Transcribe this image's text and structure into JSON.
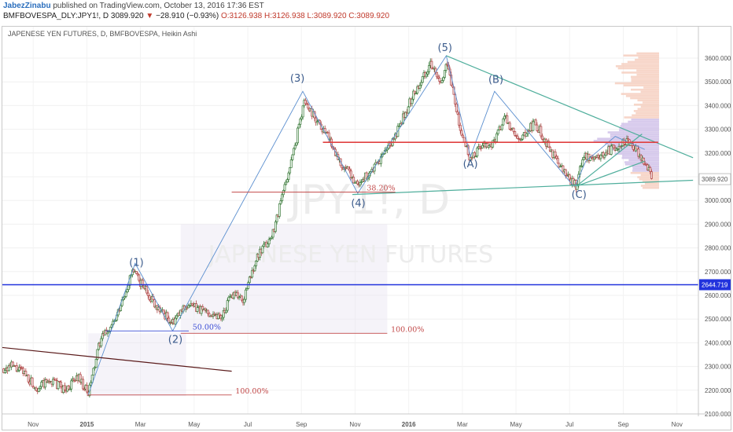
{
  "header": {
    "author": "JabezZinabu",
    "published": " published on TradingView.com, October 13, 2016 17:36 EST",
    "symbol": "BMFBOVESPA_DLY:JPY1!, D",
    "last": "3089.920",
    "arrow": "▼",
    "change": "−28.910 (−0.93%)",
    "ohlc": "O:3126.938 H:3126.938 L:3089.920 C:3089.920"
  },
  "chart_data": {
    "type": "candlestick",
    "title": "JAPENESE YEN FUTURES, D, BMFBOVESPA, Heikin Ashi",
    "watermark_symbol": "JPY1!, D",
    "watermark_name": "JAPENESE YEN FUTURES",
    "y_ticks": [
      "2100.000",
      "2200.000",
      "2300.000",
      "2400.000",
      "2500.000",
      "2600.000",
      "2700.000",
      "2800.000",
      "2900.000",
      "3000.000",
      "3100.000",
      "3200.000",
      "3300.000",
      "3400.000",
      "3500.000",
      "3600.000"
    ],
    "ylim": [
      2070,
      3660
    ],
    "x_labels": [
      {
        "t": 0.5,
        "label": "Nov"
      },
      {
        "t": 2.5,
        "label": "2015"
      },
      {
        "t": 4.5,
        "label": "Mar"
      },
      {
        "t": 6.5,
        "label": "May"
      },
      {
        "t": 8.5,
        "label": "Jul"
      },
      {
        "t": 10.5,
        "label": "Sep"
      },
      {
        "t": 12.5,
        "label": "Nov"
      },
      {
        "t": 14.5,
        "label": "2016"
      },
      {
        "t": 16.5,
        "label": "Mar"
      },
      {
        "t": 18.5,
        "label": "May"
      },
      {
        "t": 20.5,
        "label": "Jul"
      },
      {
        "t": 22.5,
        "label": "Sep"
      },
      {
        "t": 24.5,
        "label": "Nov"
      }
    ],
    "xlim": [
      -0.65,
      25.3
    ],
    "last_t": 23.6,
    "price_path": [
      [
        -0.65,
        2290
      ],
      [
        -0.3,
        2300
      ],
      [
        0.2,
        2270
      ],
      [
        0.6,
        2210
      ],
      [
        1.2,
        2240
      ],
      [
        1.7,
        2200
      ],
      [
        2.2,
        2260
      ],
      [
        2.55,
        2180
      ],
      [
        3.0,
        2410
      ],
      [
        3.6,
        2500
      ],
      [
        3.9,
        2600
      ],
      [
        4.2,
        2700
      ],
      [
        4.6,
        2640
      ],
      [
        5.0,
        2570
      ],
      [
        5.7,
        2480
      ],
      [
        6.2,
        2560
      ],
      [
        7.0,
        2530
      ],
      [
        7.5,
        2510
      ],
      [
        8.0,
        2620
      ],
      [
        8.3,
        2570
      ],
      [
        8.8,
        2750
      ],
      [
        9.4,
        2850
      ],
      [
        10.2,
        3200
      ],
      [
        10.6,
        3420
      ],
      [
        10.9,
        3370
      ],
      [
        11.5,
        3270
      ],
      [
        12.0,
        3150
      ],
      [
        12.6,
        3070
      ],
      [
        13.2,
        3130
      ],
      [
        14.0,
        3270
      ],
      [
        14.6,
        3430
      ],
      [
        15.3,
        3580
      ],
      [
        15.7,
        3480
      ],
      [
        15.95,
        3590
      ],
      [
        16.4,
        3300
      ],
      [
        16.8,
        3170
      ],
      [
        17.2,
        3230
      ],
      [
        17.6,
        3230
      ],
      [
        18.1,
        3350
      ],
      [
        18.6,
        3240
      ],
      [
        19.2,
        3330
      ],
      [
        19.9,
        3190
      ],
      [
        20.4,
        3100
      ],
      [
        20.75,
        3060
      ],
      [
        21.0,
        3190
      ],
      [
        21.6,
        3180
      ],
      [
        22.1,
        3220
      ],
      [
        22.7,
        3250
      ],
      [
        23.2,
        3180
      ],
      [
        23.6,
        3090
      ]
    ],
    "last_price": "3089.920",
    "wave_labels": [
      {
        "label": "(1)",
        "t": 4.35,
        "v": 2725
      },
      {
        "label": "(2)",
        "t": 5.8,
        "v": 2400
      },
      {
        "label": "(3)",
        "t": 10.35,
        "v": 3500
      },
      {
        "label": "(4)",
        "t": 12.62,
        "v": 2975
      },
      {
        "label": "(5)",
        "t": 15.85,
        "v": 3630
      },
      {
        "label": "(A)",
        "t": 16.8,
        "v": 3140
      },
      {
        "label": "(B)",
        "t": 17.75,
        "v": 3495
      },
      {
        "label": "(C)",
        "t": 20.85,
        "v": 3010
      }
    ],
    "wave_path": [
      [
        2.55,
        2180
      ],
      [
        4.3,
        2735
      ],
      [
        5.7,
        2450
      ],
      [
        10.55,
        3460
      ],
      [
        12.6,
        3030
      ],
      [
        15.9,
        3610
      ],
      [
        16.8,
        3185
      ],
      [
        17.7,
        3460
      ],
      [
        20.65,
        3060
      ]
    ],
    "wave_path2": [
      [
        20.7,
        3060
      ],
      [
        21.1,
        3165
      ],
      [
        22.2,
        3270
      ],
      [
        23.3,
        3215
      ]
    ],
    "trend_lines": [
      {
        "name": "downtrend-1",
        "from": [
          -0.65,
          2380
        ],
        "to": [
          7.9,
          2280
        ],
        "color": "#5a1a1a"
      },
      {
        "name": "upper-channel",
        "from": [
          15.9,
          3610
        ],
        "to": [
          25.1,
          3180
        ],
        "color": "#4fae9c"
      },
      {
        "name": "lower-channel",
        "from": [
          12.4,
          3025
        ],
        "to": [
          25.1,
          3085
        ],
        "color": "#4fae9c"
      },
      {
        "name": "wedge-upper",
        "from": [
          20.75,
          3060
        ],
        "to": [
          23.2,
          3280
        ],
        "color": "#4fae9c"
      },
      {
        "name": "wedge-lower",
        "from": [
          20.75,
          3060
        ],
        "to": [
          23.3,
          3165
        ],
        "color": "#4fae9c"
      }
    ],
    "hlines": [
      {
        "value": 2644.719,
        "color": "#2233dd",
        "width": 1.6,
        "label": "2644.719"
      },
      {
        "value": 3245,
        "color": "#e04040",
        "width": 1.6,
        "from": 11.3,
        "to": 23.8
      }
    ],
    "fibs": [
      {
        "from": [
          2.55,
          2180
        ],
        "to": [
          7.9,
          2180
        ],
        "label": "100.00%",
        "lx": 7.95,
        "color": "#c24a4a"
      },
      {
        "from": [
          3.2,
          2450
        ],
        "to": [
          6.3,
          2450
        ],
        "label": "50.00%",
        "lx": 6.35,
        "color": "#3d4fd6"
      },
      {
        "from": [
          6.0,
          2440
        ],
        "to": [
          13.7,
          2440
        ],
        "label": "100.00%",
        "lx": 13.75,
        "color": "#c24a4a"
      },
      {
        "from": [
          7.9,
          3035
        ],
        "to": [
          14.0,
          3035
        ],
        "label": "38.20%",
        "lx": 12.85,
        "color": "#c24a4a"
      }
    ],
    "shaded_ranges": [
      {
        "from": [
          2.55,
          2440
        ],
        "to": [
          6.2,
          2175
        ]
      },
      {
        "from": [
          6.0,
          2900
        ],
        "to": [
          13.7,
          2440
        ]
      }
    ],
    "volume_profile_top": 3620,
    "volume_profile_bottom": 3050,
    "volume_profile_poc": 3245
  }
}
